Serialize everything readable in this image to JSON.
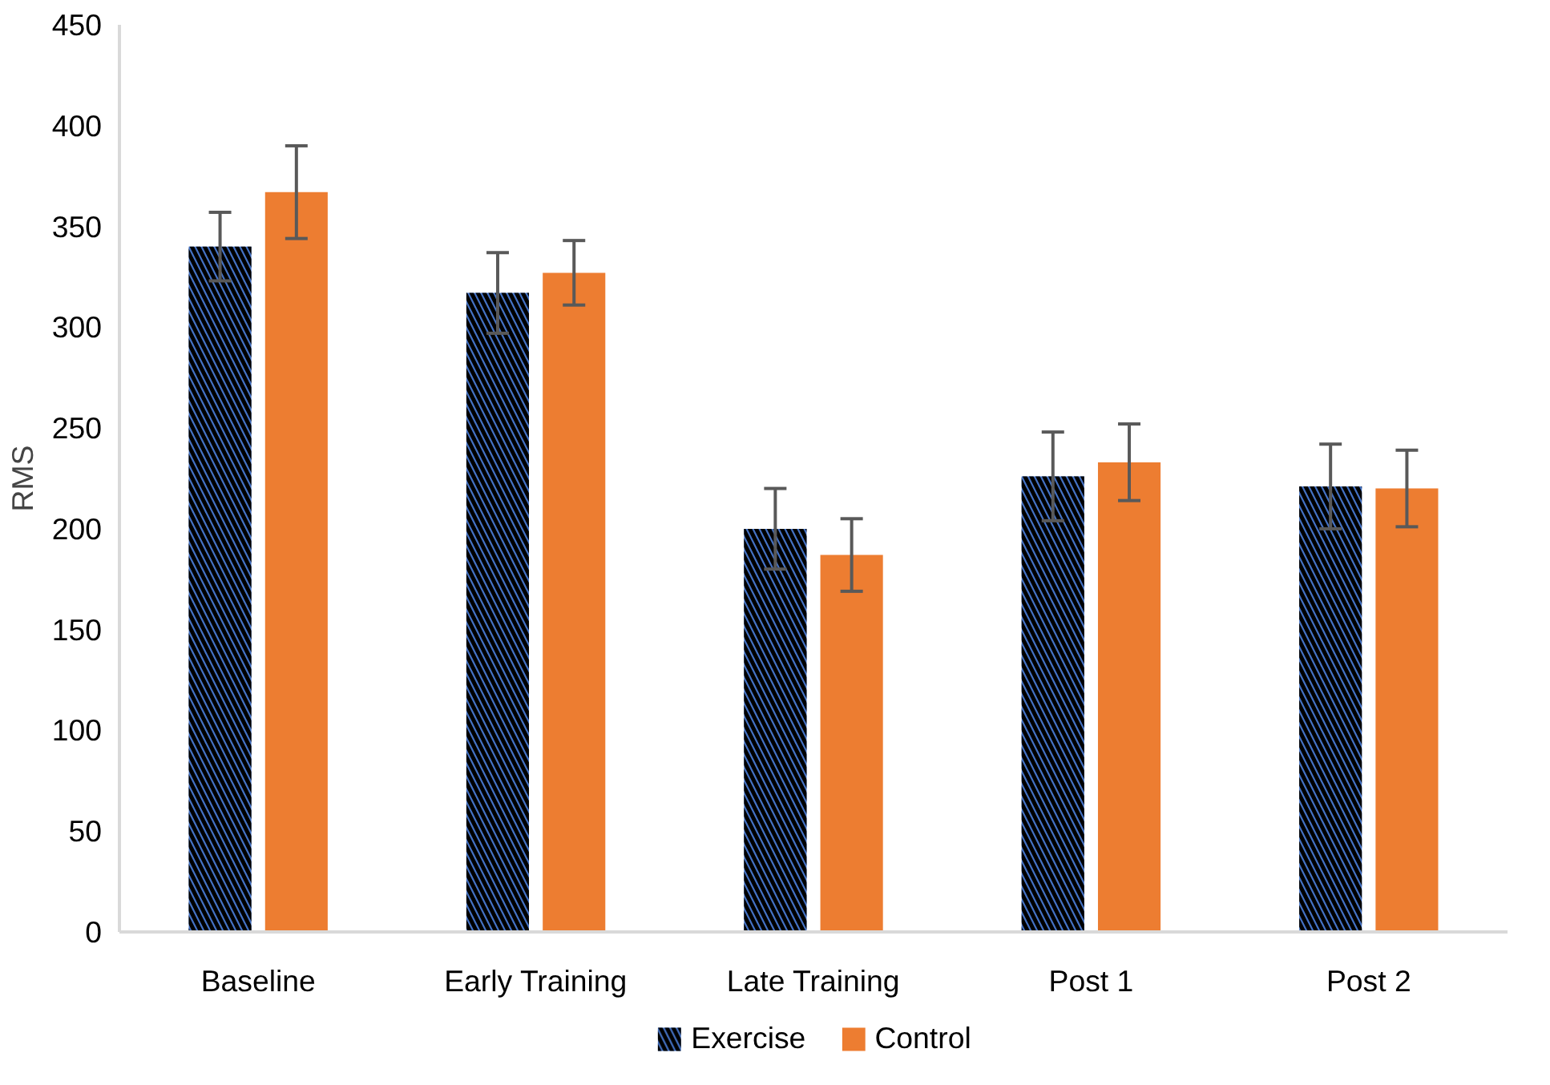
{
  "chart_data": {
    "type": "bar",
    "ylabel": "RMS",
    "categories": [
      "Baseline",
      "Early Training",
      "Late Training",
      "Post 1",
      "Post 2"
    ],
    "series": [
      {
        "name": "Exercise",
        "color": "#4472c4",
        "values": [
          340,
          317,
          200,
          226,
          221
        ],
        "errors": [
          17,
          20,
          20,
          22,
          21
        ]
      },
      {
        "name": "Control",
        "color": "#ed7d31",
        "values": [
          367,
          327,
          187,
          233,
          220
        ],
        "errors": [
          23,
          16,
          18,
          19,
          19
        ]
      }
    ],
    "ylim": [
      0,
      450
    ],
    "yticks": [
      0,
      50,
      100,
      150,
      200,
      250,
      300,
      350,
      400,
      450
    ],
    "grid": false,
    "legend": "bottom"
  }
}
